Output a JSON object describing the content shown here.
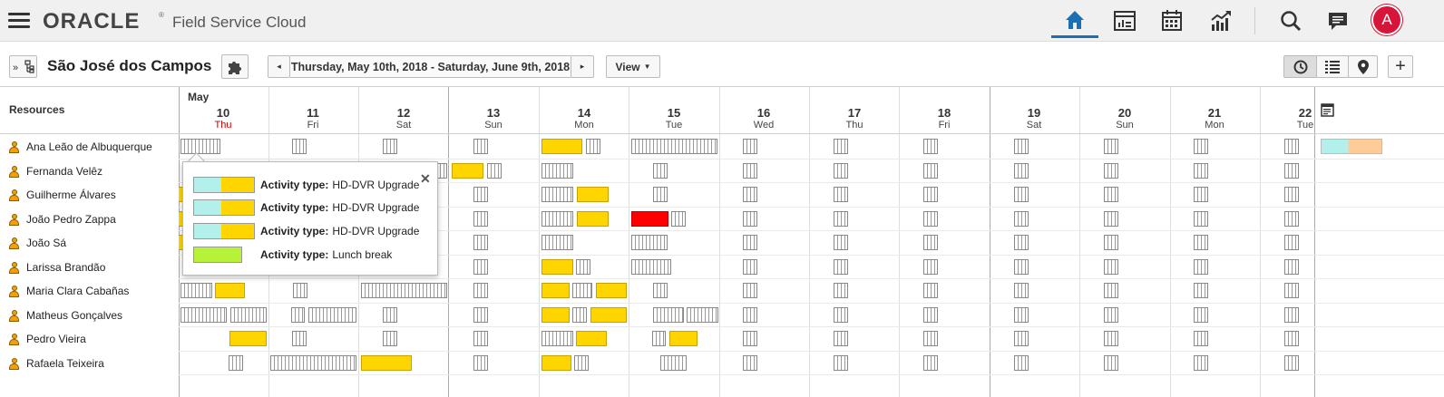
{
  "header": {
    "logo": "ORACLE",
    "logo_mark": "®",
    "product": "Field Service Cloud",
    "nav_icons": [
      "home-icon",
      "dashboard-icon",
      "calendar-icon",
      "reports-icon"
    ],
    "tools_icons": [
      "search-icon",
      "chat-icon"
    ],
    "user_initial": "A",
    "accent_color": "#1a6fb5",
    "avatar_color": "#d7143a"
  },
  "toolbar": {
    "location": "São José dos Campos",
    "date_range": "Thursday, May 10th, 2018 - Saturday, June 9th, 2018",
    "view_label": "View",
    "prev_icon": "◂",
    "next_icon": "▸",
    "view_mode_icons": [
      "clock-icon",
      "list-icon",
      "map-pin-icon"
    ],
    "add_icon": "+"
  },
  "grid": {
    "resources_header": "Resources",
    "month": "May",
    "days": [
      {
        "num": "10",
        "name": "Thu",
        "today": true
      },
      {
        "num": "11",
        "name": "Fri"
      },
      {
        "num": "12",
        "name": "Sat"
      },
      {
        "num": "13",
        "name": "Sun"
      },
      {
        "num": "14",
        "name": "Mon"
      },
      {
        "num": "15",
        "name": "Tue"
      },
      {
        "num": "16",
        "name": "Wed"
      },
      {
        "num": "17",
        "name": "Thu"
      },
      {
        "num": "18",
        "name": "Fri"
      },
      {
        "num": "19",
        "name": "Sat"
      },
      {
        "num": "20",
        "name": "Sun"
      },
      {
        "num": "21",
        "name": "Mon"
      },
      {
        "num": "22",
        "name": "Tue"
      }
    ],
    "resources": [
      "Ana Leão de Albuquerque",
      "Fernanda Velêz",
      "Guilherme Álvares",
      "João Pedro Zappa",
      "João Sá",
      "Larissa Brandão",
      "Maria Clara Cabañas",
      "Matheus Gonçalves",
      "Pedro Vieira",
      "Rafaela Teixeira"
    ],
    "colors": {
      "activity": "#ffd500",
      "alert": "#ff0000",
      "pending": "#b3f0ec",
      "lunch": "#b6f23a"
    }
  },
  "popup": {
    "rows": [
      {
        "label": "Activity type:",
        "value": "HD-DVR Upgrade"
      },
      {
        "label": "Activity type:",
        "value": "HD-DVR Upgrade"
      },
      {
        "label": "Activity type:",
        "value": "HD-DVR Upgrade"
      },
      {
        "label": "Activity type:",
        "value": "Lunch break"
      }
    ],
    "close": "✕"
  }
}
